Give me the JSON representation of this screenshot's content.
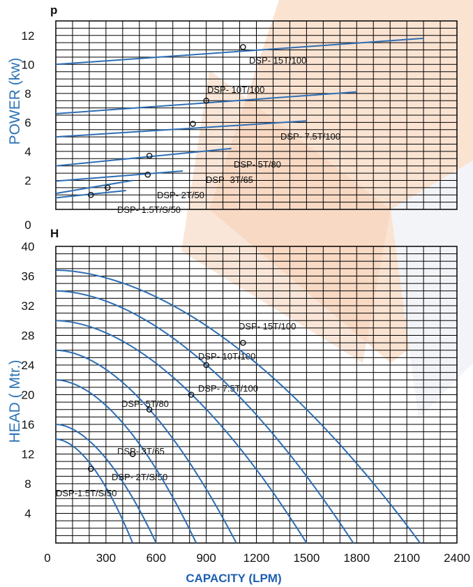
{
  "colors": {
    "curve": "#2d6db3",
    "grid": "#000000",
    "accent_bg": "#f7d6bf",
    "title": "#2a72b5"
  },
  "chart_data": [
    {
      "type": "line",
      "panel": "power",
      "axis_letter": "p",
      "ylabel": "POWER (kw)",
      "ylim": [
        0,
        13
      ],
      "yticks": [
        0,
        2,
        4,
        6,
        8,
        10,
        12
      ],
      "xlim": [
        0,
        2400
      ],
      "grid": true,
      "series": [
        {
          "name": "DSP- 1.5T/S/50",
          "x": [
            0,
            420
          ],
          "y": [
            0.8,
            1.3
          ],
          "duty_point": [
            210,
            1.0
          ]
        },
        {
          "name": "DSP- 2T/50",
          "x": [
            0,
            460
          ],
          "y": [
            1.1,
            2.0
          ],
          "duty_point": [
            310,
            1.5
          ]
        },
        {
          "name": "DSP- 3T/65",
          "x": [
            0,
            760
          ],
          "y": [
            1.95,
            2.65
          ],
          "duty_point": [
            550,
            2.4
          ]
        },
        {
          "name": "DSP- 5T/80",
          "x": [
            0,
            1050
          ],
          "y": [
            3.0,
            4.2
          ],
          "duty_point": [
            560,
            3.7
          ]
        },
        {
          "name": "DSP- 7.5T/100",
          "x": [
            0,
            1500
          ],
          "y": [
            5.0,
            6.1
          ],
          "duty_point": [
            820,
            5.9
          ]
        },
        {
          "name": "DSP- 10T/100",
          "x": [
            0,
            1800
          ],
          "y": [
            6.6,
            8.1
          ],
          "duty_point": [
            900,
            7.5
          ]
        },
        {
          "name": "DSP- 15T/100",
          "x": [
            0,
            2200
          ],
          "y": [
            10.0,
            11.8
          ],
          "duty_point": [
            1120,
            11.2
          ]
        }
      ]
    },
    {
      "type": "line",
      "panel": "head",
      "axis_letter": "H",
      "ylabel": "HEAD ( Mtr.)",
      "xlabel": "CAPACITY (LPM)",
      "ylim": [
        0,
        40
      ],
      "yticks": [
        4,
        8,
        12,
        16,
        20,
        24,
        28,
        32,
        36,
        40
      ],
      "xlim": [
        0,
        2400
      ],
      "xticks": [
        0,
        300,
        600,
        900,
        1200,
        1500,
        1800,
        2100,
        2400
      ],
      "grid": true,
      "series": [
        {
          "name": "DSP-1.5T/S/50",
          "shutoff_head": 14,
          "max_flow": 460,
          "duty_point": [
            210,
            10
          ]
        },
        {
          "name": "DSP- 2T/S/50",
          "shutoff_head": 16,
          "max_flow": 600,
          "duty_point": [
            460,
            12
          ]
        },
        {
          "name": "DSP- 3T/65",
          "shutoff_head": 22,
          "max_flow": 840,
          "duty_point": [
            460,
            12
          ]
        },
        {
          "name": "DSP- 5T/80",
          "shutoff_head": 26,
          "max_flow": 1080,
          "duty_point": [
            560,
            18
          ]
        },
        {
          "name": "DSP- 7.5T/100",
          "shutoff_head": 30,
          "max_flow": 1500,
          "duty_point": [
            810,
            20
          ]
        },
        {
          "name": "DSP- 10T/100",
          "shutoff_head": 34,
          "max_flow": 1780,
          "duty_point": [
            900,
            24
          ]
        },
        {
          "name": "DSP- 15T/100",
          "shutoff_head": 36.8,
          "max_flow": 2180,
          "duty_point": [
            1120,
            27
          ]
        }
      ]
    }
  ]
}
